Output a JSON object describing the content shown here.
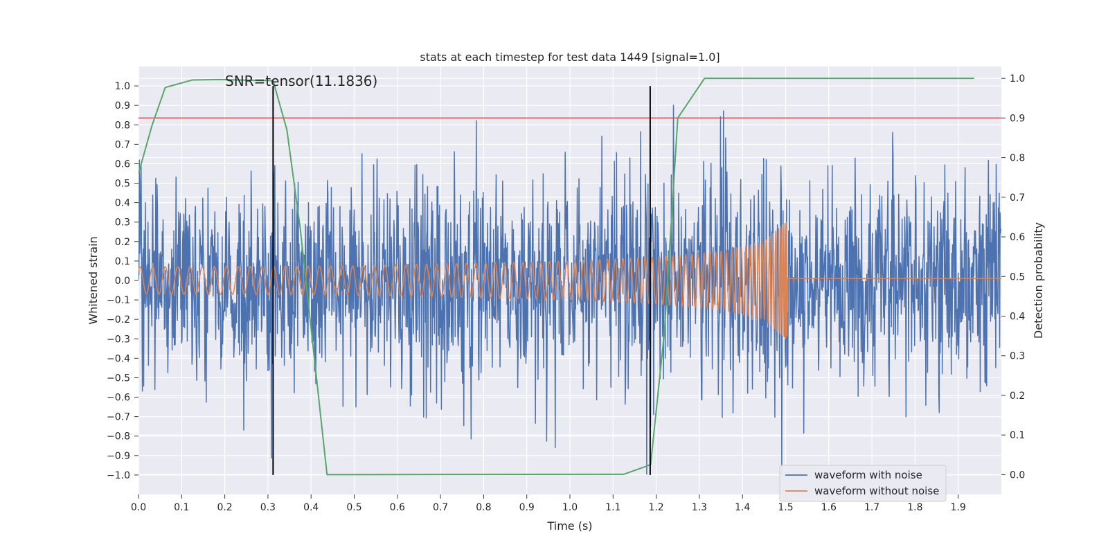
{
  "chart_data": {
    "type": "line",
    "title": "stats at each timestep for test data 1449 [signal=1.0]",
    "xlabel": "Time (s)",
    "ylabel": "Whitened strain",
    "y2label": "Detection probability",
    "annotation": "SNR=tensor(11.1836)",
    "xlim": [
      0.0,
      2.0
    ],
    "ylim": [
      -1.1,
      1.1
    ],
    "y2lim": [
      -0.05,
      1.03
    ],
    "x_ticks": [
      "0.0",
      "0.1",
      "0.2",
      "0.3",
      "0.4",
      "0.5",
      "0.6",
      "0.7",
      "0.8",
      "0.9",
      "1.0",
      "1.1",
      "1.2",
      "1.3",
      "1.4",
      "1.5",
      "1.6",
      "1.7",
      "1.8",
      "1.9"
    ],
    "y_ticks": [
      "1.0",
      "0.9",
      "0.8",
      "0.7",
      "0.6",
      "0.5",
      "0.4",
      "0.3",
      "0.2",
      "0.1",
      "0.0",
      "−0.1",
      "−0.2",
      "−0.3",
      "−0.4",
      "−0.5",
      "−0.6",
      "−0.7",
      "−0.8",
      "−0.9",
      "−1.0"
    ],
    "y2_ticks": [
      "1.0",
      "0.9",
      "0.8",
      "0.7",
      "0.6",
      "0.5",
      "0.4",
      "0.3",
      "0.2",
      "0.1",
      "0.0"
    ],
    "legend": {
      "location": "lower-right",
      "entries": [
        "waveform with noise",
        "waveform without noise"
      ]
    },
    "threshold": {
      "axis": "right",
      "value": 0.9,
      "color": "#c44e52"
    },
    "vlines": [
      {
        "x": 0.312,
        "ymin": -1.0,
        "ymax": 1.0
      },
      {
        "x": 1.186,
        "ymin": -1.0,
        "ymax": 1.0
      }
    ],
    "series": [
      {
        "name": "waveform with noise",
        "axis": "left",
        "color": "#4c72b0",
        "kind": "noise",
        "samples": 2000,
        "std": 0.27,
        "clip": [
          -1.0,
          0.95
        ]
      },
      {
        "name": "waveform without noise",
        "axis": "left",
        "color": "#dd8452",
        "kind": "chirp",
        "merger_time": 1.505,
        "start_freq_hz": 34,
        "amplitude_envelope": [
          {
            "t": 0.0,
            "a": 0.07
          },
          {
            "t": 0.5,
            "a": 0.075
          },
          {
            "t": 1.0,
            "a": 0.1
          },
          {
            "t": 1.2,
            "a": 0.12
          },
          {
            "t": 1.35,
            "a": 0.15
          },
          {
            "t": 1.45,
            "a": 0.2
          },
          {
            "t": 1.5,
            "a": 0.3
          }
        ],
        "post_merger_value": 0.01
      },
      {
        "name": "detection probability",
        "axis": "right",
        "color": "#55a868",
        "x": [
          0.0,
          0.031,
          0.062,
          0.125,
          0.187,
          0.312,
          0.344,
          0.375,
          0.437,
          1.125,
          1.187,
          1.219,
          1.25,
          1.312,
          1.937
        ],
        "y": [
          0.76,
          0.88,
          0.977,
          0.996,
          0.997,
          0.994,
          0.87,
          0.62,
          0.0,
          0.001,
          0.025,
          0.36,
          0.9,
          1.0,
          1.0
        ]
      }
    ]
  }
}
